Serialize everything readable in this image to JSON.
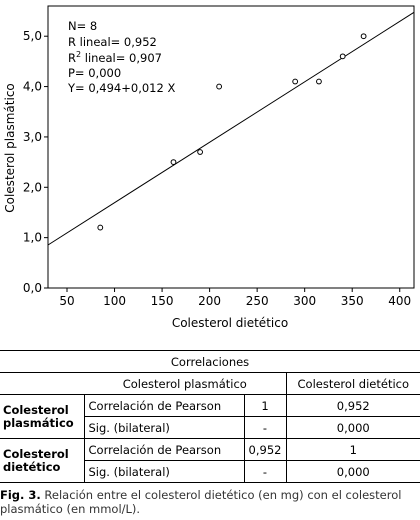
{
  "chart_data": {
    "type": "scatter",
    "title": "",
    "xlabel": "Colesterol dietético",
    "ylabel": "Colesterol plasmático",
    "xlim": [
      30,
      415
    ],
    "ylim": [
      0,
      5.6
    ],
    "xticks": [
      50,
      100,
      150,
      200,
      250,
      300,
      350,
      400
    ],
    "xtick_labels": [
      "50",
      "100",
      "150",
      "200",
      "250",
      "300",
      "350",
      "400"
    ],
    "yticks": [
      0,
      1,
      2,
      3,
      4,
      5
    ],
    "ytick_labels": [
      "0,0",
      "1,0",
      "2,0",
      "3,0",
      "4,0",
      "5,0"
    ],
    "points": [
      {
        "x": 85,
        "y": 1.2
      },
      {
        "x": 162,
        "y": 2.5
      },
      {
        "x": 190,
        "y": 2.7
      },
      {
        "x": 210,
        "y": 4.0
      },
      {
        "x": 290,
        "y": 4.1
      },
      {
        "x": 315,
        "y": 4.1
      },
      {
        "x": 340,
        "y": 4.6
      },
      {
        "x": 362,
        "y": 5.0
      }
    ],
    "fit_line": {
      "intercept": 0.494,
      "slope": 0.012
    },
    "annotations": {
      "n": "N= 8",
      "r_prefix": "R lineal= 0,952",
      "r2_prefix": "R",
      "r2_sup": "2",
      "r2_suffix": " lineal= 0,907",
      "p": "P= 0,000",
      "eq": "Y= 0,494+0,012 X"
    },
    "grid": false,
    "legend": "none"
  },
  "table": {
    "title": "Correlaciones",
    "col1": "Colesterol plasmático",
    "col2": "Colesterol dietético",
    "rows": [
      {
        "group": "Colesterol plasmático",
        "pearson_label": "Correlación de Pearson",
        "pearson_v1": "1",
        "pearson_v2": "0,952",
        "sig_label": "Sig. (bilateral)",
        "sig_v1": "-",
        "sig_v2": "0,000"
      },
      {
        "group": "Colesterol dietético",
        "pearson_label": "Correlación de Pearson",
        "pearson_v1": "0,952",
        "pearson_v2": "1",
        "sig_label": "Sig. (bilateral)",
        "sig_v1": "-",
        "sig_v2": "0,000"
      }
    ]
  },
  "caption": {
    "label": "Fig. 3.",
    "text": " Relación entre el colesterol dietético (en mg) con el colesterol plasmático (en mmol/L)."
  }
}
